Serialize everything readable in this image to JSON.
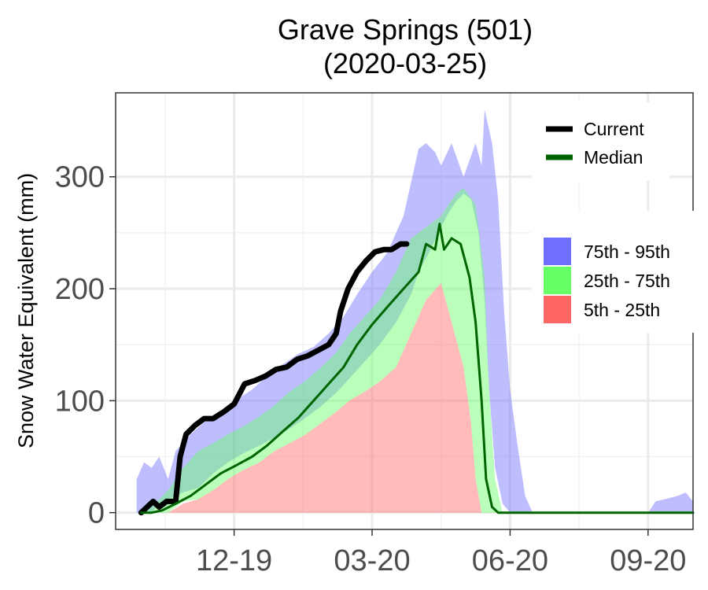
{
  "chart_data": {
    "type": "area",
    "title": "Grave Springs (501)",
    "subtitle": "(2020-03-25)",
    "xlabel": "",
    "ylabel": "Snow Water Equivalent (mm)",
    "x_ticks": [
      {
        "date": "2019-12-19",
        "label": "12-19"
      },
      {
        "date": "2020-03-20",
        "label": "03-20"
      },
      {
        "date": "2020-06-20",
        "label": "06-20"
      },
      {
        "date": "2020-09-20",
        "label": "09-20"
      }
    ],
    "y_ticks": [
      0,
      100,
      200,
      300
    ],
    "xlim": [
      "2019-10-01",
      "2020-10-20"
    ],
    "ylim": [
      -15,
      375
    ],
    "grid": true,
    "legend_placement": "top-right",
    "colors": {
      "current": "#000000",
      "median": "#006400",
      "p75_95": "#6f6fff",
      "p25_75": "#66ff66",
      "p5_25": "#ff6666"
    },
    "bands": [
      {
        "name": "75th - 95th",
        "color": "#6f6fff",
        "lower": [
          [
            "2019-10-15",
            0
          ],
          [
            "2019-10-20",
            0
          ],
          [
            "2019-10-25",
            0
          ],
          [
            "2019-10-30",
            8
          ],
          [
            "2019-11-05",
            12
          ],
          [
            "2019-11-15",
            18
          ],
          [
            "2019-11-25",
            22
          ],
          [
            "2019-12-05",
            35
          ],
          [
            "2019-12-15",
            45
          ],
          [
            "2019-12-25",
            53
          ],
          [
            "2020-01-05",
            60
          ],
          [
            "2020-01-15",
            67
          ],
          [
            "2020-01-25",
            75
          ],
          [
            "2020-02-05",
            85
          ],
          [
            "2020-02-15",
            95
          ],
          [
            "2020-02-25",
            107
          ],
          [
            "2020-03-05",
            120
          ],
          [
            "2020-03-15",
            135
          ],
          [
            "2020-03-25",
            150
          ],
          [
            "2020-04-05",
            170
          ],
          [
            "2020-04-15",
            195
          ],
          [
            "2020-04-20",
            215
          ],
          [
            "2020-04-28",
            235
          ],
          [
            "2020-05-05",
            255
          ],
          [
            "2020-05-10",
            268
          ],
          [
            "2020-05-15",
            278
          ],
          [
            "2020-05-20",
            285
          ],
          [
            "2020-05-25",
            280
          ],
          [
            "2020-05-30",
            250
          ],
          [
            "2020-06-03",
            190
          ],
          [
            "2020-06-06",
            110
          ],
          [
            "2020-06-10",
            40
          ],
          [
            "2020-06-15",
            8
          ],
          [
            "2020-06-20",
            0
          ],
          [
            "2020-10-20",
            0
          ]
        ],
        "upper": [
          [
            "2019-10-15",
            30
          ],
          [
            "2019-10-20",
            45
          ],
          [
            "2019-10-25",
            40
          ],
          [
            "2019-10-30",
            50
          ],
          [
            "2019-11-05",
            30
          ],
          [
            "2019-11-10",
            55
          ],
          [
            "2019-11-20",
            70
          ],
          [
            "2019-11-30",
            82
          ],
          [
            "2019-12-10",
            90
          ],
          [
            "2019-12-20",
            100
          ],
          [
            "2019-12-31",
            110
          ],
          [
            "2020-01-10",
            122
          ],
          [
            "2020-01-20",
            132
          ],
          [
            "2020-01-31",
            142
          ],
          [
            "2020-02-10",
            148
          ],
          [
            "2020-02-20",
            160
          ],
          [
            "2020-03-01",
            175
          ],
          [
            "2020-03-10",
            195
          ],
          [
            "2020-03-20",
            215
          ],
          [
            "2020-03-30",
            232
          ],
          [
            "2020-04-10",
            265
          ],
          [
            "2020-04-20",
            325
          ],
          [
            "2020-04-25",
            330
          ],
          [
            "2020-05-01",
            322
          ],
          [
            "2020-05-05",
            310
          ],
          [
            "2020-05-12",
            330
          ],
          [
            "2020-05-20",
            300
          ],
          [
            "2020-05-28",
            330
          ],
          [
            "2020-06-01",
            310
          ],
          [
            "2020-06-03",
            360
          ],
          [
            "2020-06-08",
            330
          ],
          [
            "2020-06-12",
            280
          ],
          [
            "2020-06-16",
            180
          ],
          [
            "2020-06-20",
            110
          ],
          [
            "2020-06-25",
            60
          ],
          [
            "2020-06-30",
            15
          ],
          [
            "2020-07-05",
            0
          ],
          [
            "2020-10-20",
            0
          ]
        ]
      },
      {
        "name": "25th - 75th",
        "color": "#66ff66",
        "lower": [
          [
            "2019-10-15",
            0
          ],
          [
            "2019-10-30",
            0
          ],
          [
            "2019-11-05",
            0
          ],
          [
            "2019-11-15",
            10
          ],
          [
            "2019-11-25",
            12
          ],
          [
            "2019-12-05",
            20
          ],
          [
            "2019-12-15",
            30
          ],
          [
            "2019-12-25",
            38
          ],
          [
            "2020-01-05",
            45
          ],
          [
            "2020-01-15",
            55
          ],
          [
            "2020-01-25",
            62
          ],
          [
            "2020-02-05",
            70
          ],
          [
            "2020-02-15",
            80
          ],
          [
            "2020-02-25",
            90
          ],
          [
            "2020-03-05",
            100
          ],
          [
            "2020-03-15",
            108
          ],
          [
            "2020-03-25",
            117
          ],
          [
            "2020-04-05",
            130
          ],
          [
            "2020-04-15",
            160
          ],
          [
            "2020-04-25",
            190
          ],
          [
            "2020-05-05",
            205
          ],
          [
            "2020-05-12",
            170
          ],
          [
            "2020-05-20",
            130
          ],
          [
            "2020-05-25",
            80
          ],
          [
            "2020-05-28",
            30
          ],
          [
            "2020-06-01",
            0
          ],
          [
            "2020-10-20",
            0
          ]
        ],
        "upper": [
          [
            "2019-10-15",
            0
          ],
          [
            "2019-10-25",
            5
          ],
          [
            "2019-11-05",
            20
          ],
          [
            "2019-11-15",
            40
          ],
          [
            "2019-11-25",
            55
          ],
          [
            "2019-12-05",
            62
          ],
          [
            "2019-12-15",
            70
          ],
          [
            "2019-12-25",
            77
          ],
          [
            "2020-01-05",
            86
          ],
          [
            "2020-01-15",
            96
          ],
          [
            "2020-01-25",
            108
          ],
          [
            "2020-02-05",
            118
          ],
          [
            "2020-02-15",
            130
          ],
          [
            "2020-02-25",
            143
          ],
          [
            "2020-03-05",
            160
          ],
          [
            "2020-03-15",
            175
          ],
          [
            "2020-03-25",
            190
          ],
          [
            "2020-04-05",
            215
          ],
          [
            "2020-04-15",
            245
          ],
          [
            "2020-04-25",
            255
          ],
          [
            "2020-05-05",
            265
          ],
          [
            "2020-05-15",
            285
          ],
          [
            "2020-05-20",
            290
          ],
          [
            "2020-05-28",
            275
          ],
          [
            "2020-06-03",
            210
          ],
          [
            "2020-06-06",
            110
          ],
          [
            "2020-06-10",
            30
          ],
          [
            "2020-06-15",
            0
          ],
          [
            "2020-10-20",
            0
          ]
        ]
      },
      {
        "name": "5th - 25th",
        "color": "#ff6666",
        "lower": [
          [
            "2019-10-15",
            0
          ],
          [
            "2020-10-20",
            0
          ]
        ],
        "upper": [
          [
            "2019-10-15",
            0
          ],
          [
            "2019-11-05",
            0
          ],
          [
            "2019-11-15",
            8
          ],
          [
            "2019-11-25",
            12
          ],
          [
            "2019-12-05",
            20
          ],
          [
            "2019-12-15",
            30
          ],
          [
            "2019-12-25",
            38
          ],
          [
            "2020-01-05",
            45
          ],
          [
            "2020-01-15",
            55
          ],
          [
            "2020-01-25",
            62
          ],
          [
            "2020-02-05",
            70
          ],
          [
            "2020-02-15",
            80
          ],
          [
            "2020-02-25",
            90
          ],
          [
            "2020-03-05",
            100
          ],
          [
            "2020-03-15",
            108
          ],
          [
            "2020-03-25",
            117
          ],
          [
            "2020-04-05",
            130
          ],
          [
            "2020-04-15",
            160
          ],
          [
            "2020-04-25",
            190
          ],
          [
            "2020-05-05",
            205
          ],
          [
            "2020-05-12",
            170
          ],
          [
            "2020-05-20",
            130
          ],
          [
            "2020-05-25",
            80
          ],
          [
            "2020-05-28",
            30
          ],
          [
            "2020-06-01",
            0
          ],
          [
            "2020-10-20",
            0
          ]
        ]
      },
      {
        "name": "",
        "color": "#6f6fff",
        "lower": [
          [
            "2020-09-20",
            0
          ],
          [
            "2020-10-20",
            0
          ]
        ],
        "upper": [
          [
            "2020-09-20",
            0
          ],
          [
            "2020-09-25",
            10
          ],
          [
            "2020-10-01",
            12
          ],
          [
            "2020-10-10",
            15
          ],
          [
            "2020-10-15",
            18
          ],
          [
            "2020-10-20",
            10
          ]
        ]
      }
    ],
    "series": [
      {
        "name": "Current",
        "color": "#000000",
        "points": [
          [
            "2019-10-18",
            0
          ],
          [
            "2019-10-22",
            5
          ],
          [
            "2019-10-26",
            10
          ],
          [
            "2019-10-30",
            5
          ],
          [
            "2019-11-04",
            10
          ],
          [
            "2019-11-10",
            10
          ],
          [
            "2019-11-13",
            50
          ],
          [
            "2019-11-17",
            70
          ],
          [
            "2019-11-23",
            78
          ],
          [
            "2019-11-29",
            84
          ],
          [
            "2019-12-05",
            84
          ],
          [
            "2019-12-12",
            90
          ],
          [
            "2019-12-19",
            97
          ],
          [
            "2019-12-26",
            115
          ],
          [
            "2020-01-02",
            118
          ],
          [
            "2020-01-09",
            122
          ],
          [
            "2020-01-16",
            128
          ],
          [
            "2020-01-23",
            130
          ],
          [
            "2020-01-30",
            137
          ],
          [
            "2020-02-06",
            140
          ],
          [
            "2020-02-13",
            145
          ],
          [
            "2020-02-20",
            150
          ],
          [
            "2020-02-25",
            160
          ],
          [
            "2020-02-28",
            180
          ],
          [
            "2020-03-04",
            200
          ],
          [
            "2020-03-10",
            215
          ],
          [
            "2020-03-16",
            225
          ],
          [
            "2020-03-22",
            233
          ],
          [
            "2020-03-28",
            235
          ],
          [
            "2020-04-02",
            235
          ],
          [
            "2020-04-08",
            240
          ],
          [
            "2020-04-12",
            240
          ]
        ]
      },
      {
        "name": "Median",
        "color": "#006400",
        "points": [
          [
            "2019-10-18",
            0
          ],
          [
            "2019-10-25",
            0
          ],
          [
            "2019-11-01",
            2
          ],
          [
            "2019-11-10",
            8
          ],
          [
            "2019-11-20",
            15
          ],
          [
            "2019-11-30",
            25
          ],
          [
            "2019-12-10",
            35
          ],
          [
            "2019-12-20",
            42
          ],
          [
            "2019-12-31",
            50
          ],
          [
            "2020-01-10",
            60
          ],
          [
            "2020-01-20",
            72
          ],
          [
            "2020-01-31",
            85
          ],
          [
            "2020-02-10",
            100
          ],
          [
            "2020-02-20",
            115
          ],
          [
            "2020-03-01",
            130
          ],
          [
            "2020-03-10",
            150
          ],
          [
            "2020-03-20",
            168
          ],
          [
            "2020-03-31",
            185
          ],
          [
            "2020-04-10",
            200
          ],
          [
            "2020-04-20",
            215
          ],
          [
            "2020-04-25",
            240
          ],
          [
            "2020-05-01",
            235
          ],
          [
            "2020-05-04",
            258
          ],
          [
            "2020-05-07",
            235
          ],
          [
            "2020-05-12",
            245
          ],
          [
            "2020-05-18",
            240
          ],
          [
            "2020-05-24",
            210
          ],
          [
            "2020-05-28",
            170
          ],
          [
            "2020-06-01",
            100
          ],
          [
            "2020-06-04",
            30
          ],
          [
            "2020-06-08",
            5
          ],
          [
            "2020-06-12",
            0
          ],
          [
            "2020-10-20",
            0
          ]
        ]
      }
    ]
  }
}
